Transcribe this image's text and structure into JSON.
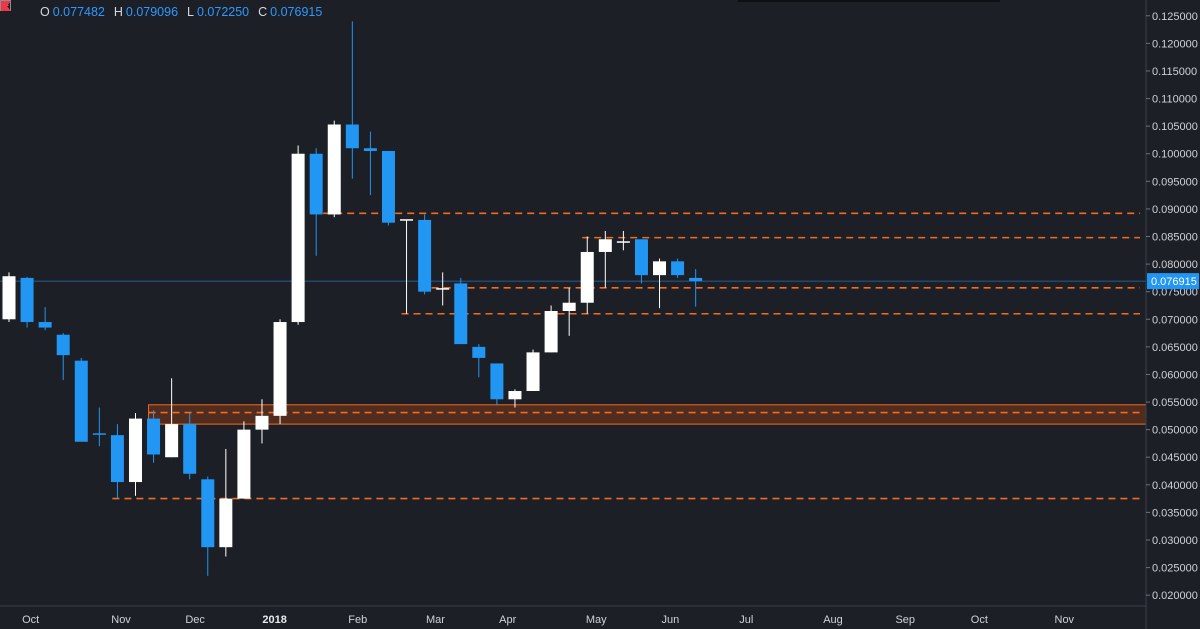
{
  "legend": {
    "o_label": "O",
    "o_value": "0.077482",
    "h_label": "H",
    "h_value": "0.079096",
    "l_label": "L",
    "l_value": "0.072250",
    "c_label": "C",
    "c_value": "0.076915"
  },
  "icons": {
    "expand": "expand-icon",
    "flag": "flag-icon"
  },
  "colors": {
    "background": "#1c1f26",
    "up": "#ffffff",
    "down": "#2196f3",
    "level_line": "#f26b21",
    "zone_fill": "#5a3020",
    "zone_border": "#f26b21",
    "price_line": "#2f6fb0",
    "last_price_bg": "#2196f3",
    "axis_text": "#cfd2d8"
  },
  "chart_data": {
    "type": "candlestick",
    "timeframe": "weekly",
    "x_ticks": [
      "Oct",
      "Nov",
      "Dec",
      "2018",
      "Feb",
      "Mar",
      "Apr",
      "May",
      "Jun",
      "Jul",
      "Aug",
      "Sep",
      "Oct",
      "Nov"
    ],
    "x_tick_index": [
      1.2,
      6.2,
      10.3,
      14.7,
      19.3,
      23.6,
      27.6,
      32.5,
      36.6,
      40.8,
      45.6,
      49.6,
      53.7,
      58.4
    ],
    "y_ticks": [
      "0.125000",
      "0.120000",
      "0.115000",
      "0.110000",
      "0.105000",
      "0.100000",
      "0.095000",
      "0.090000",
      "0.085000",
      "0.080000",
      "0.075000",
      "0.070000",
      "0.065000",
      "0.060000",
      "0.055000",
      "0.050000",
      "0.045000",
      "0.040000",
      "0.035000",
      "0.030000",
      "0.025000",
      "0.020000"
    ],
    "y_tick_values": [
      0.125,
      0.12,
      0.115,
      0.11,
      0.105,
      0.1,
      0.095,
      0.09,
      0.085,
      0.08,
      0.075,
      0.07,
      0.065,
      0.06,
      0.055,
      0.05,
      0.045,
      0.04,
      0.035,
      0.03,
      0.025,
      0.02
    ],
    "ylim": [
      0.0184,
      0.1275
    ],
    "xlim": [
      -0.45,
      63.0
    ],
    "candles": [
      {
        "o": 0.07,
        "h": 0.0785,
        "l": 0.0695,
        "c": 0.0778
      },
      {
        "o": 0.0775,
        "h": 0.0777,
        "l": 0.0685,
        "c": 0.0695
      },
      {
        "o": 0.0695,
        "h": 0.0722,
        "l": 0.068,
        "c": 0.0685
      },
      {
        "o": 0.0672,
        "h": 0.0675,
        "l": 0.059,
        "c": 0.0635
      },
      {
        "o": 0.0625,
        "h": 0.063,
        "l": 0.048,
        "c": 0.0478
      },
      {
        "o": 0.0492,
        "h": 0.054,
        "l": 0.047,
        "c": 0.049
      },
      {
        "o": 0.049,
        "h": 0.051,
        "l": 0.0375,
        "c": 0.0405
      },
      {
        "o": 0.0405,
        "h": 0.053,
        "l": 0.038,
        "c": 0.052
      },
      {
        "o": 0.052,
        "h": 0.0535,
        "l": 0.044,
        "c": 0.0455
      },
      {
        "o": 0.045,
        "h": 0.0593,
        "l": 0.045,
        "c": 0.051
      },
      {
        "o": 0.051,
        "h": 0.053,
        "l": 0.041,
        "c": 0.042
      },
      {
        "o": 0.041,
        "h": 0.0415,
        "l": 0.0235,
        "c": 0.0287
      },
      {
        "o": 0.0287,
        "h": 0.0465,
        "l": 0.027,
        "c": 0.0375
      },
      {
        "o": 0.0375,
        "h": 0.0515,
        "l": 0.0375,
        "c": 0.05
      },
      {
        "o": 0.05,
        "h": 0.0555,
        "l": 0.0475,
        "c": 0.0525
      },
      {
        "o": 0.0525,
        "h": 0.07,
        "l": 0.051,
        "c": 0.0695
      },
      {
        "o": 0.0695,
        "h": 0.1015,
        "l": 0.069,
        "c": 0.1
      },
      {
        "o": 0.1,
        "h": 0.101,
        "l": 0.0815,
        "c": 0.089
      },
      {
        "o": 0.089,
        "h": 0.106,
        "l": 0.0885,
        "c": 0.1053
      },
      {
        "o": 0.1053,
        "h": 0.124,
        "l": 0.0955,
        "c": 0.101
      },
      {
        "o": 0.101,
        "h": 0.104,
        "l": 0.0925,
        "c": 0.1005
      },
      {
        "o": 0.1005,
        "h": 0.1005,
        "l": 0.087,
        "c": 0.0875
      },
      {
        "o": 0.088,
        "h": 0.088,
        "l": 0.071,
        "c": 0.088
      },
      {
        "o": 0.088,
        "h": 0.089,
        "l": 0.0745,
        "c": 0.075
      },
      {
        "o": 0.0755,
        "h": 0.0785,
        "l": 0.0725,
        "c": 0.0755
      },
      {
        "o": 0.0765,
        "h": 0.0775,
        "l": 0.0655,
        "c": 0.0655
      },
      {
        "o": 0.065,
        "h": 0.0655,
        "l": 0.0595,
        "c": 0.063
      },
      {
        "o": 0.062,
        "h": 0.062,
        "l": 0.0545,
        "c": 0.0555
      },
      {
        "o": 0.0555,
        "h": 0.0573,
        "l": 0.054,
        "c": 0.057
      },
      {
        "o": 0.057,
        "h": 0.0645,
        "l": 0.057,
        "c": 0.064
      },
      {
        "o": 0.064,
        "h": 0.0725,
        "l": 0.064,
        "c": 0.0715
      },
      {
        "o": 0.0715,
        "h": 0.0757,
        "l": 0.067,
        "c": 0.073
      },
      {
        "o": 0.073,
        "h": 0.085,
        "l": 0.071,
        "c": 0.0822
      },
      {
        "o": 0.0822,
        "h": 0.086,
        "l": 0.0757,
        "c": 0.0845
      },
      {
        "o": 0.084,
        "h": 0.086,
        "l": 0.0825,
        "c": 0.084
      },
      {
        "o": 0.0845,
        "h": 0.0845,
        "l": 0.0765,
        "c": 0.078
      },
      {
        "o": 0.078,
        "h": 0.081,
        "l": 0.072,
        "c": 0.0805
      },
      {
        "o": 0.0805,
        "h": 0.081,
        "l": 0.0775,
        "c": 0.078
      },
      {
        "o": 0.0775,
        "h": 0.0791,
        "l": 0.0723,
        "c": 0.0769
      }
    ],
    "last_price": 0.076915,
    "last_price_label": "0.076915",
    "zone": {
      "from": 0.051,
      "to": 0.0545,
      "start_index": 8.0
    },
    "level_lines": [
      {
        "value": 0.0892,
        "start_index": 17.0
      },
      {
        "value": 0.0848,
        "start_index": 32.0
      },
      {
        "value": 0.0757,
        "start_index": 23.0
      },
      {
        "value": 0.071,
        "start_index": 22.0
      },
      {
        "value": 0.0531,
        "start_index": 8.0
      },
      {
        "value": 0.0375,
        "start_index": 6.0
      }
    ]
  }
}
